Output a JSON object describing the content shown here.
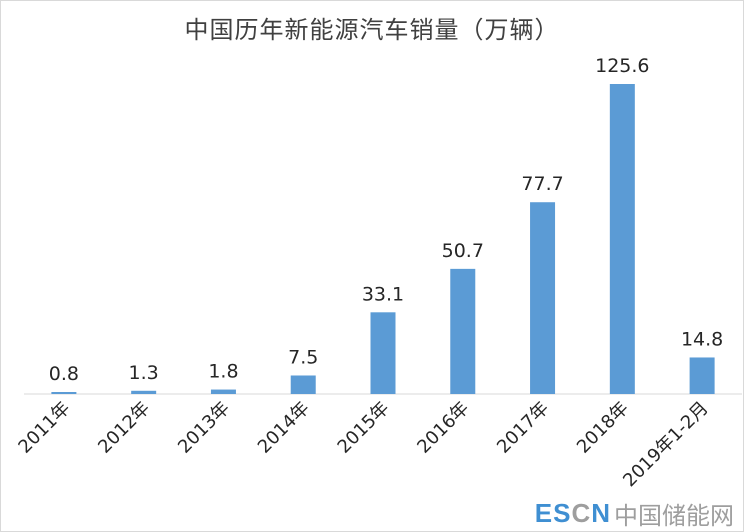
{
  "colors": {
    "bar": "#5b9bd5",
    "axis": "#d9d9d9",
    "watermark_blue": "#3f8fd2",
    "watermark_gray": "#9e9e9e"
  },
  "watermark": {
    "brand_es": "ES",
    "brand_c": "C",
    "brand_n": "N",
    "cn_text": "中国储能网"
  },
  "chart_data": {
    "type": "bar",
    "title": "中国历年新能源汽车销量（万辆）",
    "categories": [
      "2011年",
      "2012年",
      "2013年",
      "2014年",
      "2015年",
      "2016年",
      "2017年",
      "2018年",
      "2019年1-2月"
    ],
    "values": [
      0.8,
      1.3,
      1.8,
      7.5,
      33.1,
      50.7,
      77.7,
      125.6,
      14.8
    ],
    "value_labels": [
      "0.8",
      "1.3",
      "1.8",
      "7.5",
      "33.1",
      "50.7",
      "77.7",
      "125.6",
      "14.8"
    ],
    "xlabel": "",
    "ylabel": "",
    "ylim": [
      0,
      125.6
    ],
    "grid": false,
    "legend": "none"
  }
}
